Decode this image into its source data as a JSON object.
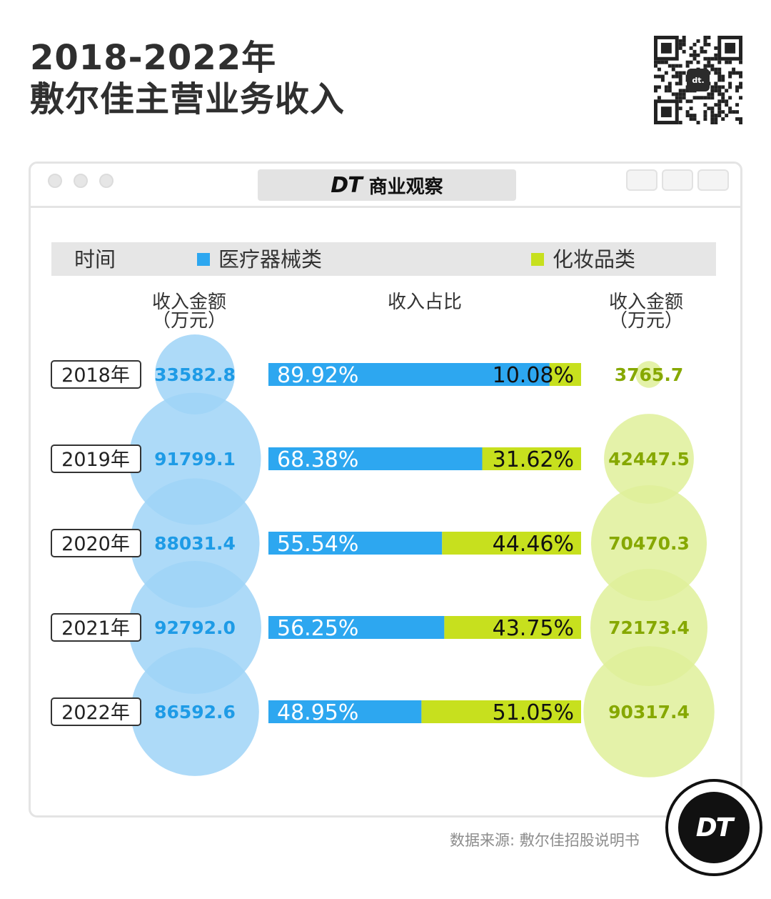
{
  "header": {
    "title_line1": "2018-2022年",
    "title_line2": "敷尔佳主营业务收入"
  },
  "window": {
    "brand_mark": "DT",
    "brand_name": "商业观察",
    "qr_mark": "dt."
  },
  "legend": {
    "time_label": "时间",
    "medical_label": "医疗器械类",
    "cosmetic_label": "化妆品类"
  },
  "columns": {
    "left_amount_line1": "收入金额",
    "left_amount_line2": "（万元）",
    "share_label": "收入占比",
    "right_amount_line1": "收入金额",
    "right_amount_line2": "（万元）"
  },
  "colors": {
    "medical": "#2da7f0",
    "medical_bubble": "#9fd4f7",
    "cosmetic": "#c7e01e",
    "cosmetic_bubble": "#dff09a",
    "medical_text": "#1e9be6",
    "cosmetic_text": "#86a800"
  },
  "chart_data": {
    "type": "bar",
    "orientation": "horizontal-stacked-100",
    "categories": [
      "2018年",
      "2019年",
      "2020年",
      "2021年",
      "2022年"
    ],
    "series": [
      {
        "name": "医疗器械类",
        "amounts": [
          33582.8,
          91799.1,
          88031.4,
          92792.0,
          86592.6
        ],
        "amount_labels": [
          "33582.8",
          "91799.1",
          "88031.4",
          "92792.0",
          "86592.6"
        ],
        "shares": [
          89.92,
          68.38,
          55.54,
          56.25,
          48.95
        ],
        "share_labels": [
          "89.92%",
          "68.38%",
          "55.54%",
          "56.25%",
          "48.95%"
        ]
      },
      {
        "name": "化妆品类",
        "amounts": [
          3765.7,
          42447.5,
          70470.3,
          72173.4,
          90317.4
        ],
        "amount_labels": [
          "3765.7",
          "42447.5",
          "70470.3",
          "72173.4",
          "90317.4"
        ],
        "shares": [
          10.08,
          31.62,
          44.46,
          43.75,
          51.05
        ],
        "share_labels": [
          "10.08%",
          "31.62%",
          "44.46%",
          "43.75%",
          "51.05%"
        ]
      }
    ]
  },
  "footer": {
    "source": "数据来源: 敷尔佳招股说明书",
    "logo_text": "DT"
  }
}
